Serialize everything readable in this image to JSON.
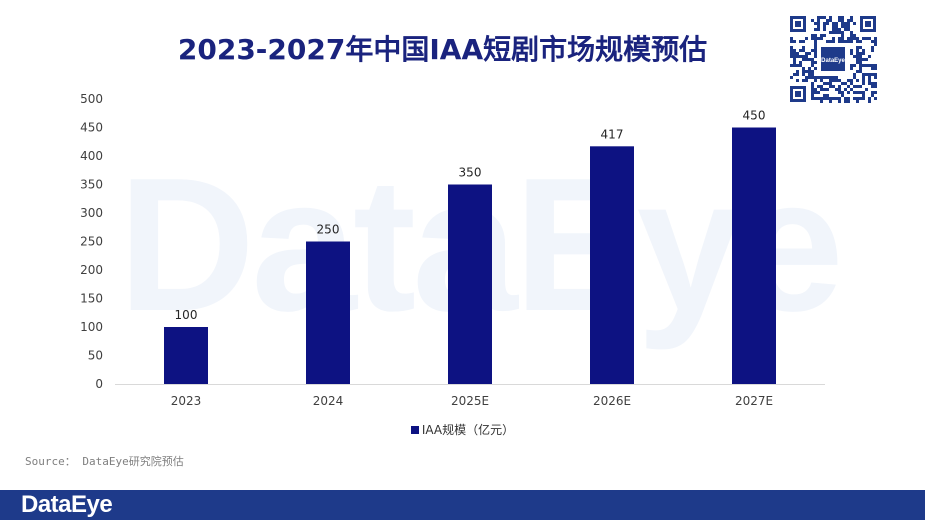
{
  "page": {
    "title": "2023-2027年中国IAA短剧市场规模预估",
    "source": "Source： DataEye研究院预估",
    "brand": "DataEye",
    "watermark": "DataEye",
    "qr_badge": "DataEye"
  },
  "colors": {
    "bar": "#0d1282",
    "title": "#1a237e",
    "footer": "#1e3a8a"
  },
  "chart_data": {
    "type": "bar",
    "title": "2023-2027年中国IAA短剧市场规模预估",
    "categories": [
      "2023",
      "2024",
      "2025E",
      "2026E",
      "2027E"
    ],
    "series": [
      {
        "name": "IAA规模（亿元）",
        "values": [
          100,
          250,
          350,
          417,
          450
        ]
      }
    ],
    "data_labels": [
      "100",
      "250",
      "350",
      "417",
      "450"
    ],
    "y_ticks": [
      "0",
      "50",
      "100",
      "150",
      "200",
      "250",
      "300",
      "350",
      "400",
      "450",
      "500"
    ],
    "ylim": [
      0,
      500
    ],
    "xlabel": "",
    "ylabel": "",
    "grid": false,
    "legend_position": "bottom"
  }
}
